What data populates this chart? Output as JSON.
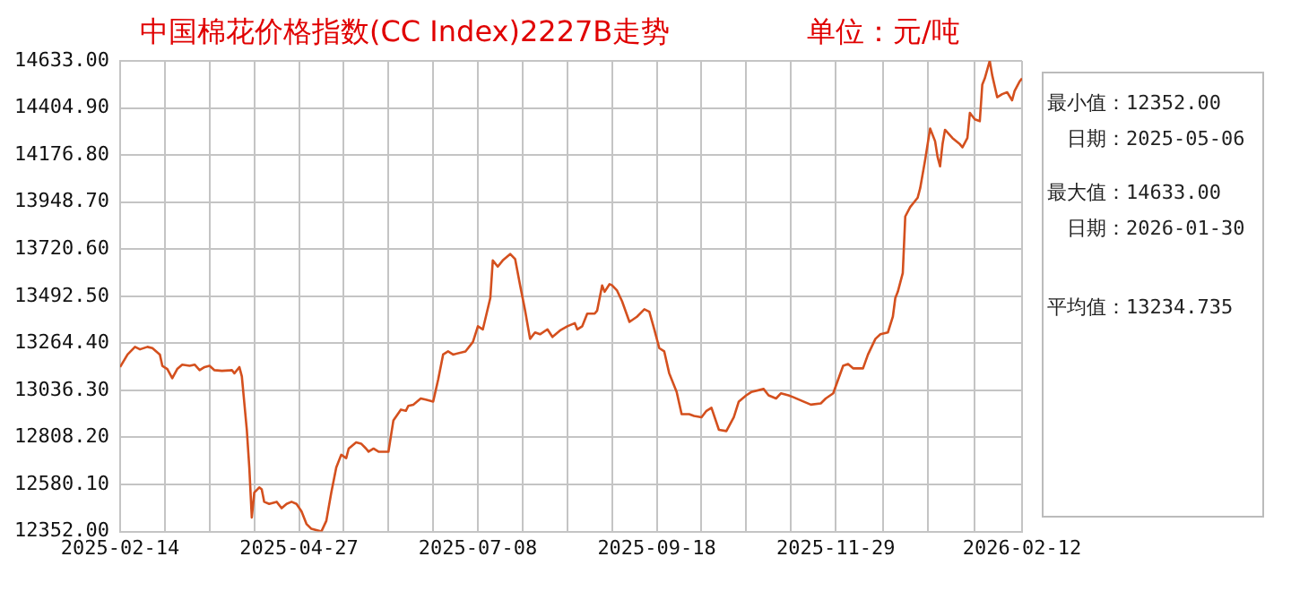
{
  "chart_data": {
    "type": "line",
    "title": "中国棉花价格指数(CC Index)2227B走势",
    "subtitle": "单位：元/吨",
    "x": [
      "2025-02-14",
      "2025-02-17",
      "2025-02-20",
      "2025-02-22",
      "2025-02-25",
      "2025-02-27",
      "2025-03-02",
      "2025-03-03",
      "2025-03-05",
      "2025-03-07",
      "2025-03-09",
      "2025-03-11",
      "2025-03-14",
      "2025-03-16",
      "2025-03-18",
      "2025-03-20",
      "2025-03-22",
      "2025-03-24",
      "2025-03-27",
      "2025-03-31",
      "2025-04-01",
      "2025-04-03",
      "2025-04-04",
      "2025-04-06",
      "2025-04-07",
      "2025-04-08",
      "2025-04-09",
      "2025-04-11",
      "2025-04-12",
      "2025-04-13",
      "2025-04-15",
      "2025-04-18",
      "2025-04-20",
      "2025-04-22",
      "2025-04-24",
      "2025-04-26",
      "2025-04-28",
      "2025-04-30",
      "2025-05-02",
      "2025-05-06",
      "2025-05-08",
      "2025-05-10",
      "2025-05-12",
      "2025-05-14",
      "2025-05-16",
      "2025-05-17",
      "2025-05-20",
      "2025-05-22",
      "2025-05-24",
      "2025-05-25",
      "2025-05-27",
      "2025-05-29",
      "2025-06-02",
      "2025-06-03",
      "2025-06-04",
      "2025-06-07",
      "2025-06-09",
      "2025-06-10",
      "2025-06-12",
      "2025-06-15",
      "2025-06-17",
      "2025-06-20",
      "2025-06-22",
      "2025-06-24",
      "2025-06-26",
      "2025-06-28",
      "2025-07-03",
      "2025-07-06",
      "2025-07-08",
      "2025-07-10",
      "2025-07-13",
      "2025-07-14",
      "2025-07-16",
      "2025-07-18",
      "2025-07-21",
      "2025-07-23",
      "2025-07-25",
      "2025-07-27",
      "2025-07-29",
      "2025-07-31",
      "2025-08-02",
      "2025-08-05",
      "2025-08-07",
      "2025-08-10",
      "2025-08-13",
      "2025-08-16",
      "2025-08-17",
      "2025-08-19",
      "2025-08-21",
      "2025-08-24",
      "2025-08-25",
      "2025-08-27",
      "2025-08-28",
      "2025-08-30",
      "2025-08-31",
      "2025-09-02",
      "2025-09-04",
      "2025-09-07",
      "2025-09-10",
      "2025-09-13",
      "2025-09-15",
      "2025-09-17",
      "2025-09-19",
      "2025-09-21",
      "2025-09-23",
      "2025-09-26",
      "2025-09-28",
      "2025-10-01",
      "2025-10-03",
      "2025-10-06",
      "2025-10-08",
      "2025-10-10",
      "2025-10-13",
      "2025-10-16",
      "2025-10-19",
      "2025-10-21",
      "2025-10-24",
      "2025-10-26",
      "2025-10-31",
      "2025-11-02",
      "2025-11-05",
      "2025-11-07",
      "2025-11-10",
      "2025-11-12",
      "2025-11-16",
      "2025-11-19",
      "2025-11-23",
      "2025-11-25",
      "2025-11-28",
      "2025-11-30",
      "2025-12-02",
      "2025-12-04",
      "2025-12-06",
      "2025-12-10",
      "2025-12-12",
      "2025-12-15",
      "2025-12-17",
      "2025-12-20",
      "2025-12-22",
      "2025-12-23",
      "2025-12-24",
      "2025-12-26",
      "2025-12-27",
      "2025-12-29",
      "2026-01-01",
      "2026-01-02",
      "2026-01-04",
      "2026-01-06",
      "2026-01-08",
      "2026-01-09",
      "2026-01-10",
      "2026-01-11",
      "2026-01-12",
      "2026-01-15",
      "2026-01-18",
      "2026-01-19",
      "2026-01-21",
      "2026-01-22",
      "2026-01-24",
      "2026-01-26",
      "2026-01-27",
      "2026-01-28",
      "2026-01-30",
      "2026-01-31",
      "2026-02-02",
      "2026-02-04",
      "2026-02-06",
      "2026-02-08",
      "2026-02-09",
      "2026-02-11",
      "2026-02-12"
    ],
    "series": [
      {
        "color": "#d4501e",
        "values": [
          13149,
          13210,
          13247,
          13235,
          13247,
          13241,
          13210,
          13155,
          13140,
          13095,
          13140,
          13161,
          13155,
          13161,
          13134,
          13149,
          13155,
          13134,
          13131,
          13134,
          13119,
          13149,
          13104,
          12845,
          12663,
          12420,
          12541,
          12566,
          12556,
          12496,
          12486,
          12496,
          12465,
          12486,
          12496,
          12486,
          12450,
          12389,
          12365,
          12352,
          12404,
          12541,
          12663,
          12724,
          12708,
          12754,
          12784,
          12778,
          12754,
          12739,
          12754,
          12739,
          12739,
          12815,
          12891,
          12943,
          12937,
          12961,
          12967,
          12997,
          12991,
          12982,
          13088,
          13210,
          13225,
          13210,
          13225,
          13271,
          13347,
          13332,
          13484,
          13666,
          13636,
          13666,
          13697,
          13672,
          13545,
          13423,
          13286,
          13317,
          13308,
          13332,
          13295,
          13326,
          13347,
          13362,
          13332,
          13347,
          13408,
          13408,
          13423,
          13545,
          13514,
          13551,
          13545,
          13520,
          13469,
          13368,
          13393,
          13429,
          13417,
          13332,
          13241,
          13225,
          13119,
          13028,
          12921,
          12921,
          12912,
          12906,
          12937,
          12952,
          12845,
          12839,
          12906,
          12982,
          13012,
          13028,
          13043,
          13012,
          12997,
          13022,
          13012,
          13003,
          12982,
          12967,
          12973,
          12997,
          13022,
          13089,
          13155,
          13164,
          13143,
          13143,
          13210,
          13286,
          13308,
          13317,
          13393,
          13484,
          13514,
          13605,
          13879,
          13925,
          13970,
          14016,
          14153,
          14305,
          14244,
          14168,
          14122,
          14229,
          14299,
          14259,
          14229,
          14214,
          14259,
          14381,
          14350,
          14341,
          14518,
          14548,
          14633,
          14563,
          14457,
          14472,
          14481,
          14442,
          14487,
          14533,
          14548
        ]
      }
    ],
    "xlim": [
      "2025-02-14",
      "2026-02-12"
    ],
    "xticks": [
      "2025-02-14",
      {
        "value": "2025-03-04",
        "label": null
      },
      {
        "value": "2025-03-22",
        "label": null
      },
      {
        "value": "2025-04-09",
        "label": null
      },
      "2025-04-27",
      {
        "value": "2025-05-15",
        "label": null
      },
      {
        "value": "2025-06-02",
        "label": null
      },
      {
        "value": "2025-06-20",
        "label": null
      },
      "2025-07-08",
      {
        "value": "2025-07-26",
        "label": null
      },
      {
        "value": "2025-08-13",
        "label": null
      },
      {
        "value": "2025-08-31",
        "label": null
      },
      "2025-09-18",
      {
        "value": "2025-10-06",
        "label": null
      },
      {
        "value": "2025-10-24",
        "label": null
      },
      {
        "value": "2025-11-11",
        "label": null
      },
      "2025-11-29",
      {
        "value": "2025-12-18",
        "label": null
      },
      {
        "value": "2026-01-05",
        "label": null
      },
      {
        "value": "2026-01-24",
        "label": null
      },
      "2026-02-12"
    ],
    "ylim": [
      12352,
      14633
    ],
    "yticks": [
      {
        "value": 12352,
        "label": "12352.00"
      },
      {
        "value": 12580.1,
        "label": "12580.10"
      },
      {
        "value": 12808.2,
        "label": "12808.20"
      },
      {
        "value": 13036.3,
        "label": "13036.30"
      },
      {
        "value": 13264.4,
        "label": "13264.40"
      },
      {
        "value": 13492.5,
        "label": "13492.50"
      },
      {
        "value": 13720.6,
        "label": "13720.60"
      },
      {
        "value": 13948.7,
        "label": "13948.70"
      },
      {
        "value": 14176.8,
        "label": "14176.80"
      },
      {
        "value": 14404.9,
        "label": "14404.90"
      },
      {
        "value": 14633,
        "label": "14633.00"
      }
    ],
    "grid": true,
    "marker": "none",
    "annotations": [
      "最小值：12352.00",
      "日期：2025-05-06",
      "最大值：14633.00",
      "日期：2026-01-30",
      "平均值：13234.735"
    ]
  }
}
